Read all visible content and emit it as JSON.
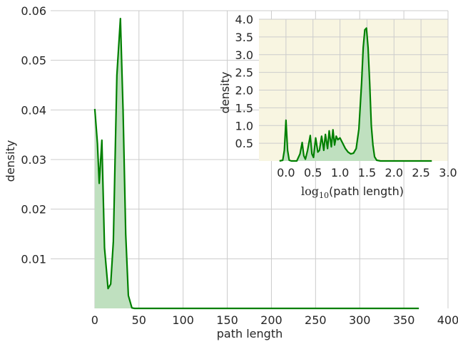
{
  "chart_data": [
    {
      "type": "area",
      "xlabel": "path length",
      "ylabel": "density",
      "xlim": [
        -50,
        400
      ],
      "ylim": [
        0,
        0.06
      ],
      "x_ticks": [
        0,
        50,
        100,
        150,
        200,
        250,
        300,
        350,
        400
      ],
      "y_ticks": [
        0.01,
        0.02,
        0.03,
        0.04,
        0.05,
        0.06
      ],
      "x_tick_labels": [
        "0",
        "50",
        "100",
        "150",
        "200",
        "250",
        "300",
        "350",
        "400"
      ],
      "y_tick_labels": [
        "0.01",
        "0.02",
        "0.03",
        "0.04",
        "0.05",
        "0.06"
      ],
      "grid": true,
      "color": "#008000",
      "fill_color": "#bfe0bf",
      "x": [
        0,
        3,
        5,
        8,
        11,
        15,
        18,
        21,
        25,
        29,
        32,
        35,
        38,
        42,
        45,
        60,
        100,
        200,
        300,
        367
      ],
      "y": [
        0.0402,
        0.0332,
        0.0252,
        0.0339,
        0.0122,
        0.004,
        0.0049,
        0.0135,
        0.047,
        0.0584,
        0.04,
        0.015,
        0.0026,
        0.0001,
        0.0,
        0.0,
        0.0,
        0.0,
        0.0,
        0.0
      ]
    },
    {
      "type": "area",
      "inset": true,
      "xlabel_prefix": "log",
      "xlabel_subscript": "10",
      "xlabel_suffix": "(path length)",
      "ylabel": "density",
      "xlim": [
        -0.5,
        3.0
      ],
      "ylim": [
        0,
        4.0
      ],
      "x_ticks": [
        0.0,
        0.5,
        1.0,
        1.5,
        2.0,
        2.5,
        3.0
      ],
      "y_ticks": [
        0.5,
        1.0,
        1.5,
        2.0,
        2.5,
        3.0,
        3.5,
        4.0
      ],
      "x_tick_labels": [
        "0.0",
        "0.5",
        "1.0",
        "1.5",
        "2.0",
        "2.5",
        "3.0"
      ],
      "y_tick_labels": [
        "0.5",
        "1.0",
        "1.5",
        "2.0",
        "2.5",
        "3.0",
        "3.5",
        "4.0"
      ],
      "background": "#f8f5e1",
      "grid": true,
      "color": "#008000",
      "fill_color": "#bfe0bf",
      "x": [
        -0.12,
        -0.06,
        -0.03,
        0.0,
        0.03,
        0.06,
        0.1,
        0.2,
        0.26,
        0.3,
        0.33,
        0.36,
        0.4,
        0.45,
        0.48,
        0.51,
        0.55,
        0.59,
        0.62,
        0.66,
        0.7,
        0.73,
        0.77,
        0.8,
        0.84,
        0.87,
        0.9,
        0.93,
        0.96,
        1.0,
        1.05,
        1.1,
        1.15,
        1.2,
        1.25,
        1.3,
        1.35,
        1.4,
        1.43,
        1.46,
        1.49,
        1.52,
        1.55,
        1.58,
        1.61,
        1.64,
        1.68,
        1.75,
        1.9,
        2.2,
        2.7
      ],
      "y": [
        0.0,
        0.02,
        0.3,
        1.15,
        0.3,
        0.02,
        0.0,
        0.0,
        0.2,
        0.52,
        0.15,
        0.05,
        0.3,
        0.72,
        0.2,
        0.1,
        0.65,
        0.25,
        0.3,
        0.7,
        0.3,
        0.75,
        0.35,
        0.85,
        0.4,
        0.88,
        0.45,
        0.7,
        0.6,
        0.65,
        0.5,
        0.35,
        0.25,
        0.2,
        0.22,
        0.35,
        0.9,
        2.2,
        3.2,
        3.7,
        3.75,
        3.2,
        2.2,
        1.0,
        0.45,
        0.12,
        0.02,
        0.0,
        0.0,
        0.0,
        0.0
      ]
    }
  ]
}
